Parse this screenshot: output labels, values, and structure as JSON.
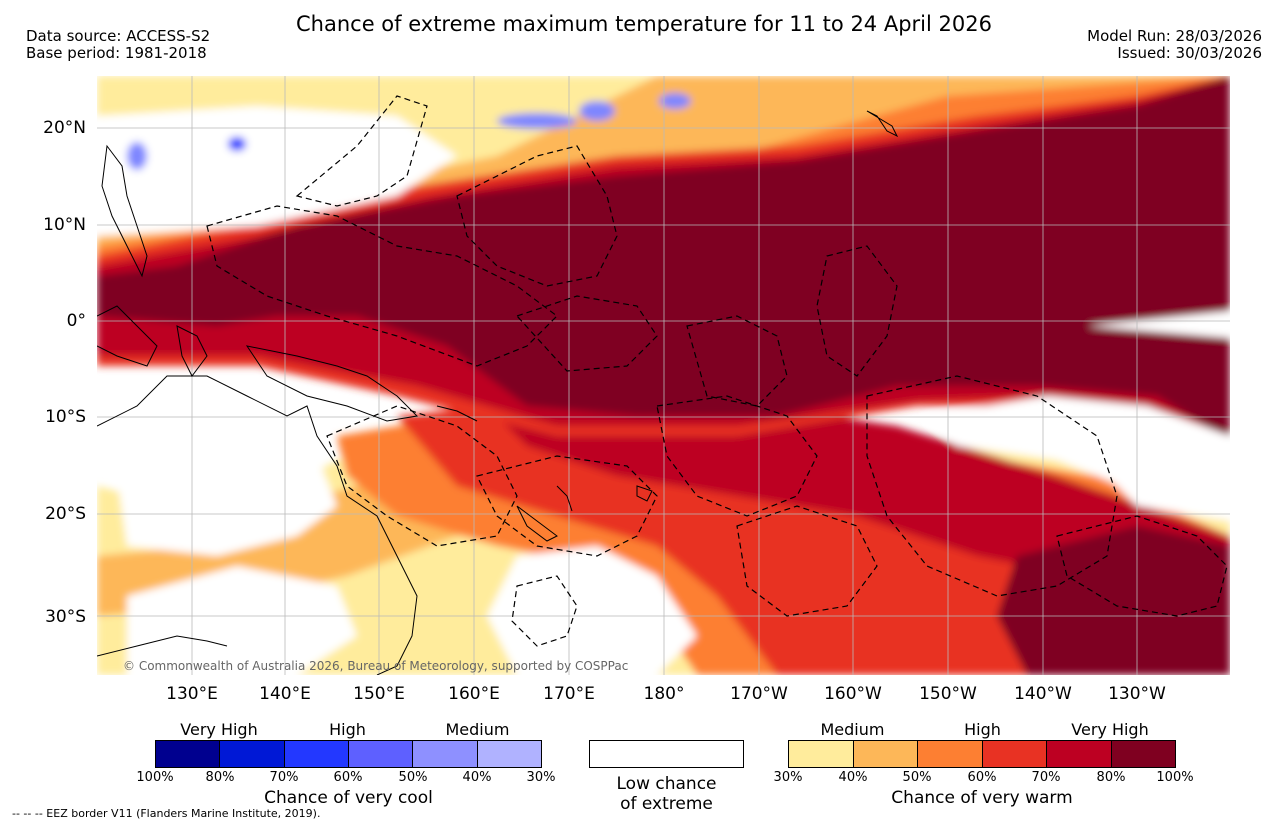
{
  "header": {
    "title": "Chance of extreme maximum temperature for 11 to 24 April 2026",
    "data_source": "Data source: ACCESS-S2",
    "base_period": "Base period: 1981-2018",
    "model_run": "Model Run: 28/03/2026",
    "issued": "Issued: 30/03/2026"
  },
  "map": {
    "lat_labels": [
      "20°N",
      "10°N",
      "0°",
      "10°S",
      "20°S",
      "30°S"
    ],
    "lon_labels": [
      "130°E",
      "140°E",
      "150°E",
      "160°E",
      "170°E",
      "180°",
      "170°W",
      "160°W",
      "150°W",
      "140°W",
      "130°W"
    ],
    "credit": "© Commonwealth of Australia 2026, Bureau of Meteorology, supported by COSPPac",
    "colors": {
      "very_warm_80_100": "#7f0020",
      "warm_70_80": "#bd0022",
      "warm_60_70": "#e83223",
      "warm_50_60": "#fd7f32",
      "warm_40_50": "#fdb758",
      "warm_30_40": "#ffec9c",
      "cool_30_40": "#7e86ff",
      "cool_60_70": "#2338ff"
    }
  },
  "legend": {
    "cool": {
      "categories": [
        "Very High",
        "High",
        "Medium"
      ],
      "ticks": [
        "100%",
        "80%",
        "70%",
        "60%",
        "50%",
        "40%",
        "30%"
      ],
      "colors": [
        "#00008f",
        "#0018d6",
        "#2338ff",
        "#5e60ff",
        "#8e90ff",
        "#b0b2ff"
      ],
      "title": "Chance of very cool"
    },
    "neutral": {
      "title_line1": "Low chance",
      "title_line2": "of extreme"
    },
    "warm": {
      "categories": [
        "Medium",
        "High",
        "Very High"
      ],
      "ticks": [
        "30%",
        "40%",
        "50%",
        "60%",
        "70%",
        "80%",
        "100%"
      ],
      "colors": [
        "#ffec9c",
        "#fdb758",
        "#fd7f32",
        "#e83223",
        "#bd0022",
        "#7f0020"
      ],
      "title": "Chance of very warm"
    }
  },
  "footer": {
    "eez": "--  --  -- EEZ border V11 (Flanders Marine Institute, 2019)."
  }
}
